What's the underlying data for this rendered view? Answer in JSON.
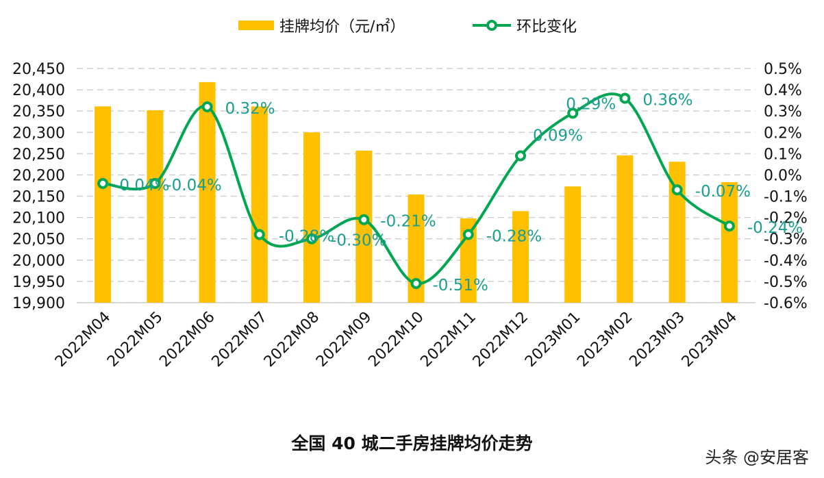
{
  "chart_data": {
    "type": "bar+line",
    "title": "全国 40 城二手房挂牌均价走势",
    "categories": [
      "2022M04",
      "2022M05",
      "2022M06",
      "2022M07",
      "2022M08",
      "2022M09",
      "2022M10",
      "2022M11",
      "2022M12",
      "2023M01",
      "2023M02",
      "2023M03",
      "2023M04"
    ],
    "series": [
      {
        "name": "挂牌均价（元/㎡）",
        "type": "bar",
        "axis": "left",
        "color": "#FFC000",
        "values": [
          20361,
          20352,
          20418,
          20361,
          20300,
          20257,
          20154,
          20098,
          20115,
          20173,
          20246,
          20231,
          20183
        ]
      },
      {
        "name": "环比变化",
        "type": "line",
        "axis": "right",
        "color": "#00A650",
        "values": [
          -0.04,
          -0.04,
          0.32,
          -0.28,
          -0.3,
          -0.21,
          -0.51,
          -0.28,
          0.09,
          0.29,
          0.36,
          -0.07,
          -0.24
        ],
        "labels": [
          "-0.04%",
          "-0.04%",
          "0.32%",
          "-0.28%",
          "-0.30%",
          "-0.21%",
          "-0.51%",
          "-0.28%",
          "0.09%",
          "0.29%",
          "0.36%",
          "-0.07%",
          "-0.24%"
        ]
      }
    ],
    "left_axis": {
      "ylim": [
        19900,
        20450
      ],
      "ticks": [
        "19,900",
        "19,950",
        "20,000",
        "20,050",
        "20,100",
        "20,150",
        "20,200",
        "20,250",
        "20,300",
        "20,350",
        "20,400",
        "20,450"
      ]
    },
    "right_axis": {
      "ylim": [
        -0.6,
        0.5
      ],
      "ticks": [
        "-0.6%",
        "-0.5%",
        "-0.4%",
        "-0.3%",
        "-0.2%",
        "-0.1%",
        "0.0%",
        "0.1%",
        "0.2%",
        "0.3%",
        "0.4%",
        "0.5%"
      ]
    },
    "grid": true,
    "legend": "top",
    "label_color": "#1A9E8F"
  },
  "watermark": "头条 @安居客"
}
